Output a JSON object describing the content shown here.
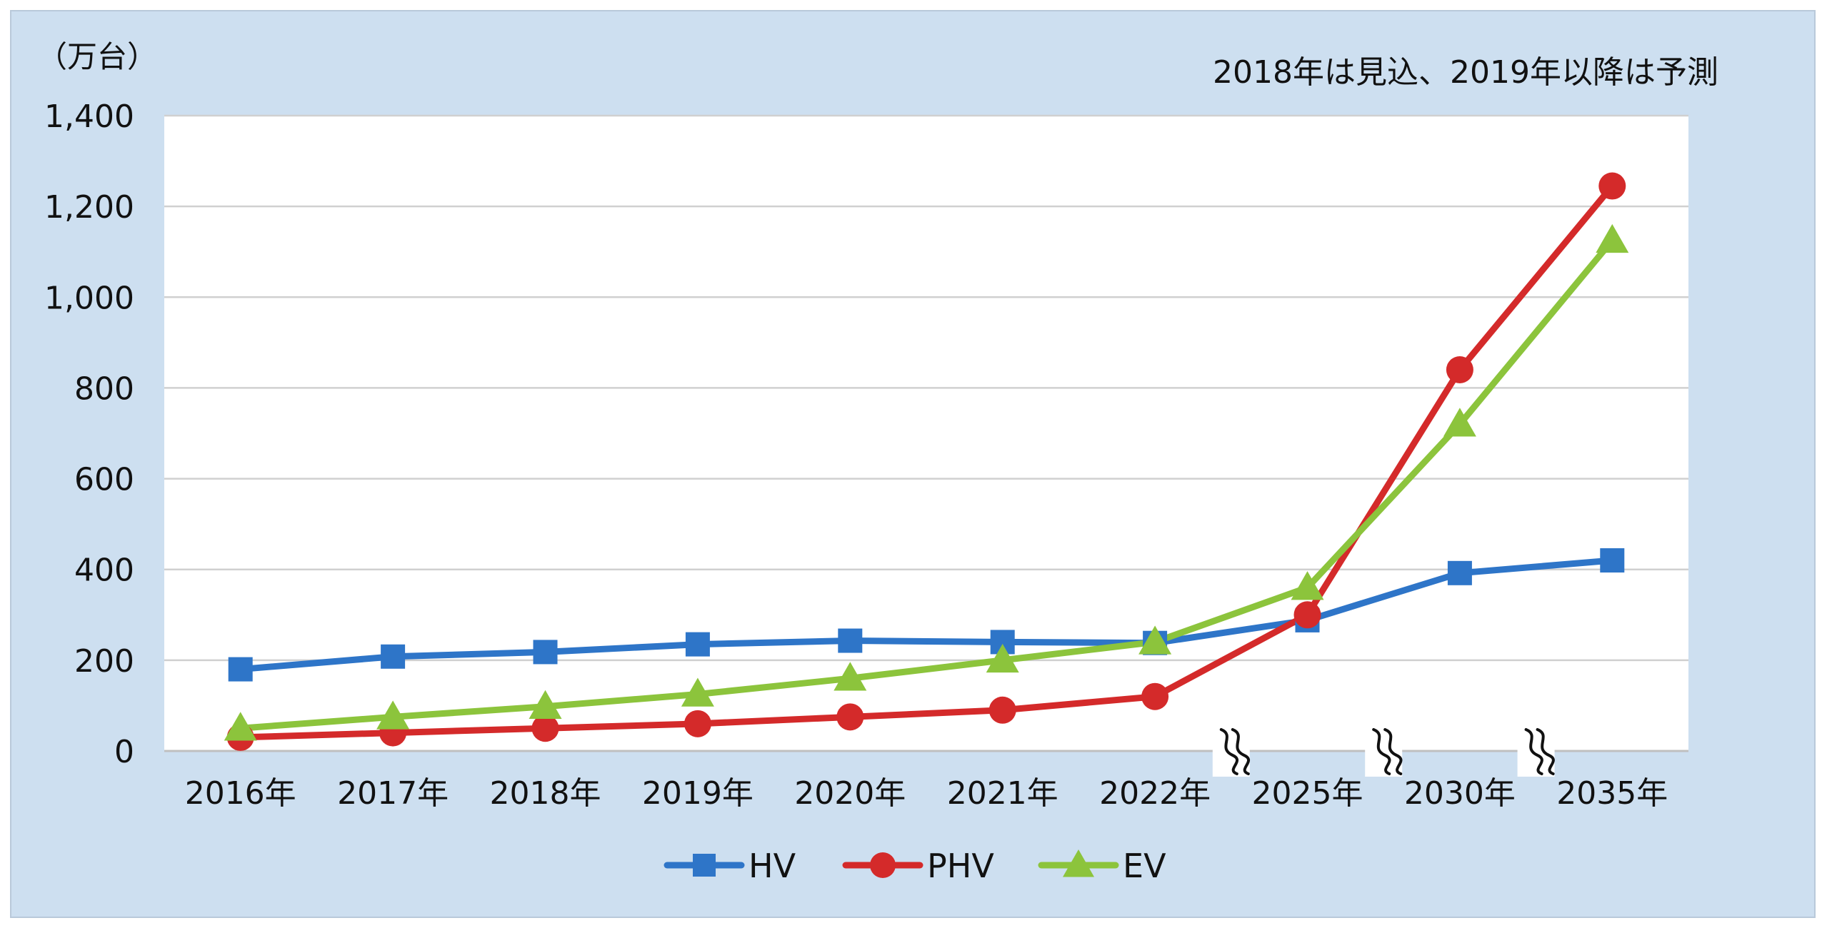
{
  "chart_data": {
    "type": "line",
    "unit_label": "（万台）",
    "note": "2018年は見込、2019年以降は予測",
    "categories": [
      "2016年",
      "2017年",
      "2018年",
      "2019年",
      "2020年",
      "2021年",
      "2022年",
      "2025年",
      "2030年",
      "2035年"
    ],
    "y_ticks": [
      "0",
      "200",
      "400",
      "600",
      "800",
      "1,000",
      "1,200",
      "1,400"
    ],
    "ylim": [
      0,
      1400
    ],
    "grid": true,
    "legend": "bottom-center",
    "axis_breaks_after_index": [
      6,
      7,
      8
    ],
    "series": [
      {
        "name": "HV",
        "color": "#2e75c8",
        "marker": "square",
        "values": [
          180,
          208,
          218,
          235,
          243,
          240,
          238,
          288,
          392,
          420
        ]
      },
      {
        "name": "PHV",
        "color": "#d42a2a",
        "marker": "circle",
        "values": [
          30,
          40,
          50,
          60,
          75,
          90,
          120,
          300,
          840,
          1245
        ]
      },
      {
        "name": "EV",
        "color": "#8cc43c",
        "marker": "triangle",
        "values": [
          50,
          75,
          98,
          125,
          160,
          200,
          240,
          360,
          720,
          1125
        ]
      }
    ]
  }
}
